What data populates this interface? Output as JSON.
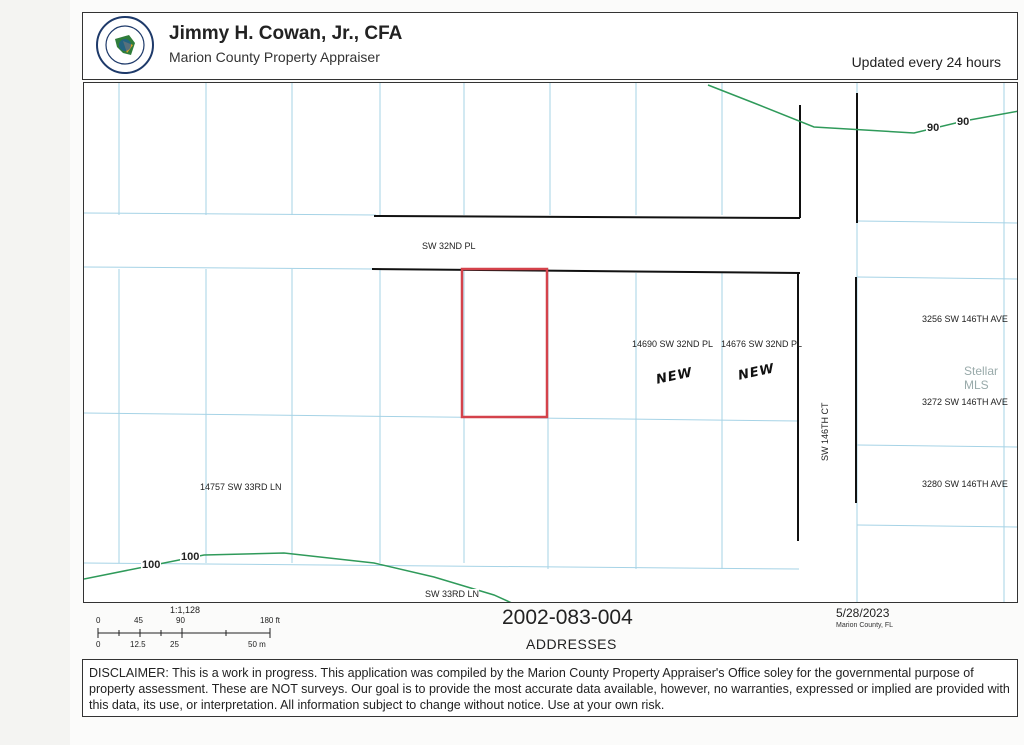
{
  "header": {
    "seal_text": "PROPERTY APPRAISER · MARION COUNTY, FLORIDA",
    "title": "Jimmy H. Cowan, Jr., CFA",
    "subtitle": "Marion County Property Appraiser",
    "updated": "Updated every 24 hours"
  },
  "map": {
    "streets": {
      "north": "SW 32ND PL",
      "east": "SW 146TH CT",
      "south": "SW 33RD LN"
    },
    "addresses": [
      "14690 SW 32ND PL",
      "14676 SW 32ND PL",
      "3256 SW 146TH AVE",
      "3272 SW 146TH AVE",
      "3280 SW 146TH AVE",
      "14757 SW 33RD LN"
    ],
    "handwritten": [
      "NEW",
      "NEW"
    ],
    "contours": {
      "left_a": "100",
      "left_b": "100",
      "right_a": "90",
      "right_b": "90"
    },
    "colors": {
      "parcel_line": "#a6d3e6",
      "contour": "#2f9a5a",
      "subject_parcel": "#d4424b",
      "road_edge": "#111111"
    },
    "watermark": "Stellar MLS"
  },
  "scale": {
    "ratio": "1:1,128",
    "feet_ticks": [
      "0",
      "45",
      "90",
      "180 ft"
    ],
    "meter_ticks": [
      "0",
      "12.5",
      "25",
      "50 m"
    ]
  },
  "footer": {
    "parcel_id": "2002-083-004",
    "layer": "ADDRESSES",
    "date": "5/28/2023",
    "county": "Marion County, FL"
  },
  "disclaimer": "DISCLAIMER: This is a work in progress. This application was compiled by the Marion County Property Appraiser's Office soley for the governmental purpose of property assessment. These are NOT surveys. Our goal is to provide the most accurate data available, however, no warranties, expressed or implied are provided with this data, its use, or interpretation. All information subject to change without notice. Use at your own risk."
}
